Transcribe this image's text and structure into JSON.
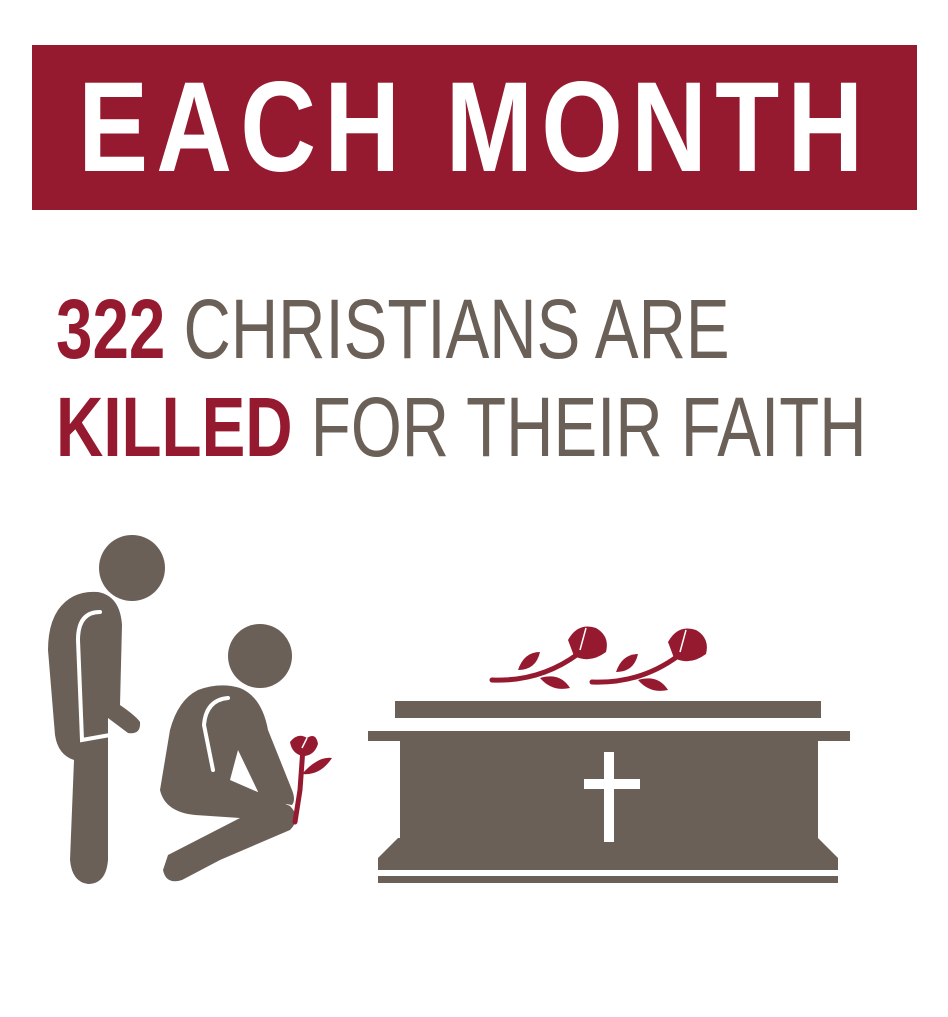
{
  "banner": {
    "title": "EACH MONTH"
  },
  "headline": {
    "number": "322",
    "line1_rest": "CHRISTIANS ARE",
    "emphasis": "KILLED",
    "line2_rest": "FOR THEIR FAITH"
  },
  "colors": {
    "brand_red": "#961a2f",
    "figure_brown": "#6b6058",
    "background": "#ffffff"
  },
  "icons": [
    "standing-mourner-icon",
    "kneeling-mourner-icon",
    "rose-icon",
    "coffin-icon",
    "cross-icon",
    "roses-icon"
  ]
}
